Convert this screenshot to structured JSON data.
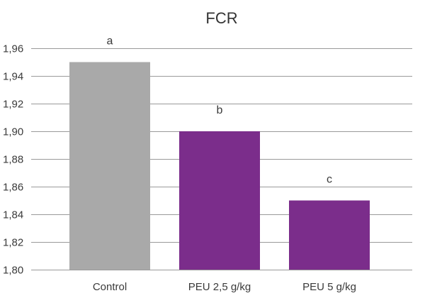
{
  "chart_data": {
    "type": "bar",
    "title": "FCR",
    "xlabel": "",
    "ylabel": "",
    "categories": [
      "Control",
      "PEU 2,5 g/kg",
      "PEU 5 g/kg"
    ],
    "values": [
      1.95,
      1.9,
      1.85
    ],
    "significance_labels": [
      "a",
      "b",
      "c"
    ],
    "bar_colors": [
      "#a9a9a9",
      "#7b2d8b",
      "#7b2d8b"
    ],
    "ylim": [
      1.8,
      1.96
    ],
    "yticks": [
      1.8,
      1.82,
      1.84,
      1.86,
      1.88,
      1.9,
      1.92,
      1.94,
      1.96
    ],
    "ytick_labels": [
      "1,80",
      "1,82",
      "1,84",
      "1,86",
      "1,88",
      "1,90",
      "1,92",
      "1,94",
      "1,96"
    ],
    "grid": true,
    "legend": false
  }
}
